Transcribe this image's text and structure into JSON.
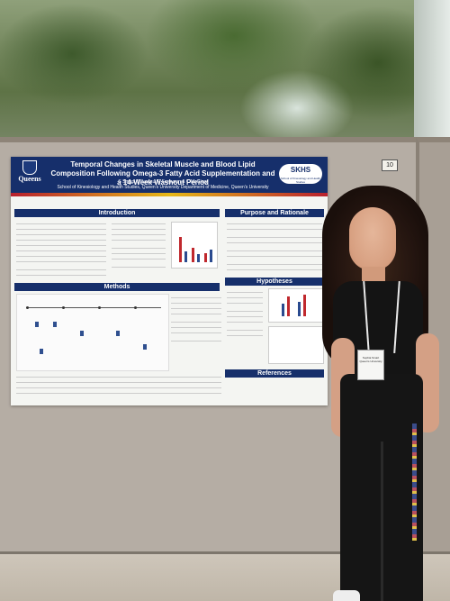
{
  "scene": {
    "description": "photo",
    "board_tag": "10"
  },
  "poster": {
    "title": "Temporal Changes in Skeletal Muscle and Blood Lipid Composition Following Omega-3 Fatty Acid Supplementation and a 14-Week Washout Period",
    "authors": "S Smart, J Bureau, E Ferguson & C McGlory",
    "affiliation": "School of Kinesiology and Health Studies, Queen's University Department of Medicine, Queen's University",
    "left_logo": "Queens",
    "right_logo": "SKHS",
    "right_logo_sub": "School of Kinesiology and Health Studies",
    "sections": {
      "introduction": "Introduction",
      "purpose": "Purpose and Rationale",
      "methods": "Methods",
      "hypotheses": "Hypotheses",
      "references": "References"
    }
  },
  "badge": {
    "line1": "Sophia Smart",
    "line2": "Queen's University"
  },
  "colors": {
    "poster_navy": "#162f6b",
    "accent_red": "#b8202e",
    "accent_gold": "#e6b817"
  }
}
